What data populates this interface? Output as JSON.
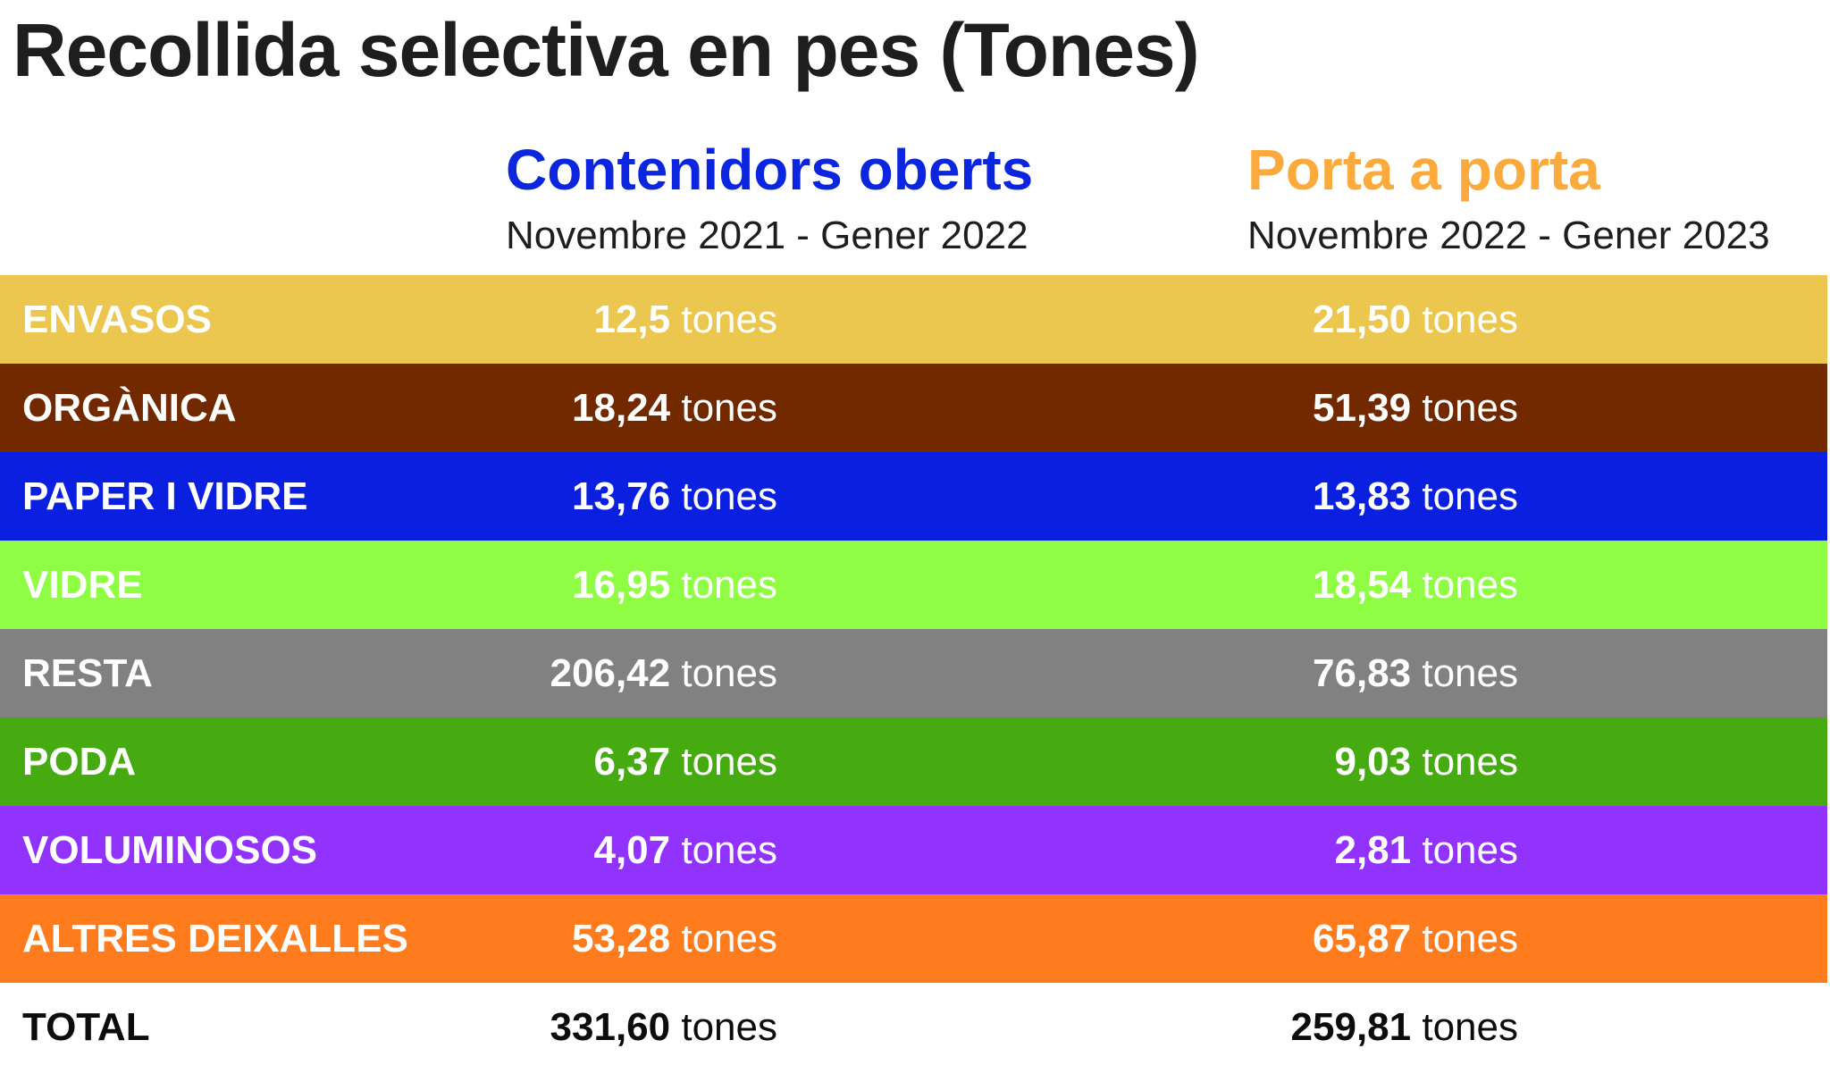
{
  "chart_data": {
    "type": "table",
    "title": "Recollida selectiva en pes (Tones)",
    "columns": [
      {
        "name": "Contenidors oberts",
        "period": "Novembre 2021 - Gener 2022",
        "color": "#0c25de"
      },
      {
        "name": "Porta a porta",
        "period": "Novembre 2022 - Gener 2023",
        "color": "#fbab3e"
      }
    ],
    "unit": "tones",
    "rows": [
      {
        "label": "ENVASOS",
        "color": "#ebc74f",
        "values": [
          "12,5",
          "21,50"
        ]
      },
      {
        "label": "ORGÀNICA",
        "color": "#732900",
        "values": [
          "18,24",
          "51,39"
        ]
      },
      {
        "label": "PAPER I VIDRE",
        "color": "#0b1fe0",
        "values": [
          "13,76",
          "13,83"
        ]
      },
      {
        "label": "VIDRE",
        "color": "#8ffd44",
        "values": [
          "16,95",
          "18,54"
        ]
      },
      {
        "label": "RESTA",
        "color": "#818181",
        "values": [
          "206,42",
          "76,83"
        ]
      },
      {
        "label": "PODA",
        "color": "#46ab11",
        "values": [
          "6,37",
          "9,03"
        ]
      },
      {
        "label": "VOLUMINOSOS",
        "color": "#9232fd",
        "values": [
          "4,07",
          "2,81"
        ]
      },
      {
        "label": "ALTRES DEIXALLES",
        "color": "#fe7c1d",
        "values": [
          "53,28",
          "65,87"
        ]
      }
    ],
    "total": {
      "label": "TOTAL",
      "values": [
        "331,60",
        "259,81"
      ]
    }
  }
}
